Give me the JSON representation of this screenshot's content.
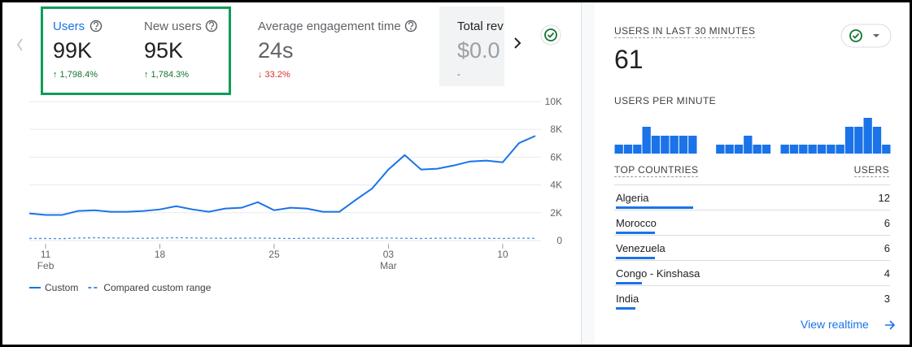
{
  "metrics": [
    {
      "label": "Users",
      "value": "99K",
      "change": "↑ 1,798.4%"
    },
    {
      "label": "New users",
      "value": "95K",
      "change": "↑ 1,784.3%"
    },
    {
      "label": "Average engagement time",
      "value": "24s",
      "change": "↓ 33.2%"
    },
    {
      "label": "Total rev",
      "value": "$0.0",
      "change": "-"
    }
  ],
  "chart_data": [
    {
      "type": "line",
      "x": [
        0,
        1,
        2,
        3,
        4,
        5,
        6,
        7,
        8,
        9,
        10,
        11,
        12,
        13,
        14,
        15,
        16,
        17,
        18,
        19,
        20,
        21,
        22,
        23,
        24,
        25,
        26,
        27,
        28,
        29,
        30,
        31
      ],
      "series": [
        {
          "name": "Custom",
          "color": "#1a73e8",
          "dash": false,
          "values": [
            1950,
            1840,
            1840,
            2130,
            2180,
            2070,
            2070,
            2130,
            2240,
            2470,
            2240,
            2070,
            2300,
            2360,
            2760,
            2180,
            2360,
            2300,
            2070,
            2070,
            2930,
            3740,
            5110,
            6150,
            5110,
            5170,
            5400,
            5690,
            5750,
            5630,
            7010,
            7530
          ]
        },
        {
          "name": "Compared custom range",
          "color": "#4a90e2",
          "dash": true,
          "values": [
            150,
            150,
            140,
            180,
            200,
            190,
            170,
            160,
            180,
            200,
            190,
            170,
            160,
            170,
            180,
            160,
            150,
            160,
            170,
            150,
            160,
            170,
            180,
            160,
            150,
            160,
            170,
            150,
            160,
            150,
            170,
            160
          ]
        }
      ],
      "xlim": [
        0,
        31
      ],
      "xticks": [
        {
          "value": 1,
          "label": "11"
        },
        {
          "value": 8,
          "label": "18"
        },
        {
          "value": 15,
          "label": "25"
        },
        {
          "value": 22,
          "label": "03"
        },
        {
          "value": 29,
          "label": "10"
        }
      ],
      "xtick_months": [
        {
          "value": 1,
          "label": "Feb"
        },
        {
          "value": 22,
          "label": "Mar"
        }
      ],
      "ylim": [
        0,
        10000
      ],
      "yticks": [
        0,
        {
          "value": 2000,
          "label": "2K"
        },
        {
          "value": 4000,
          "label": "4K"
        },
        {
          "value": 6000,
          "label": "6K"
        },
        {
          "value": 8000,
          "label": "8K"
        },
        {
          "value": 10000,
          "label": "10K"
        }
      ],
      "grid": true
    },
    {
      "type": "bar",
      "color": "#1a73e8",
      "values": [
        1,
        1,
        1,
        3,
        2,
        2,
        2,
        2,
        2,
        0,
        0,
        1,
        1,
        1,
        2,
        1,
        1,
        0,
        1,
        1,
        1,
        1,
        1,
        1,
        1,
        3,
        3,
        4,
        3,
        1
      ]
    }
  ],
  "realtime": {
    "title": "USERS IN LAST 30 MINUTES",
    "value": 61,
    "per_minute_label": "USERS PER MINUTE",
    "countries_header": "TOP COUNTRIES",
    "users_header": "USERS",
    "countries": [
      {
        "name": "Algeria",
        "users": 12
      },
      {
        "name": "Morocco",
        "users": 6
      },
      {
        "name": "Venezuela",
        "users": 6
      },
      {
        "name": "Congo - Kinshasa",
        "users": 4
      },
      {
        "name": "India",
        "users": 3
      }
    ],
    "link": "View realtime"
  }
}
